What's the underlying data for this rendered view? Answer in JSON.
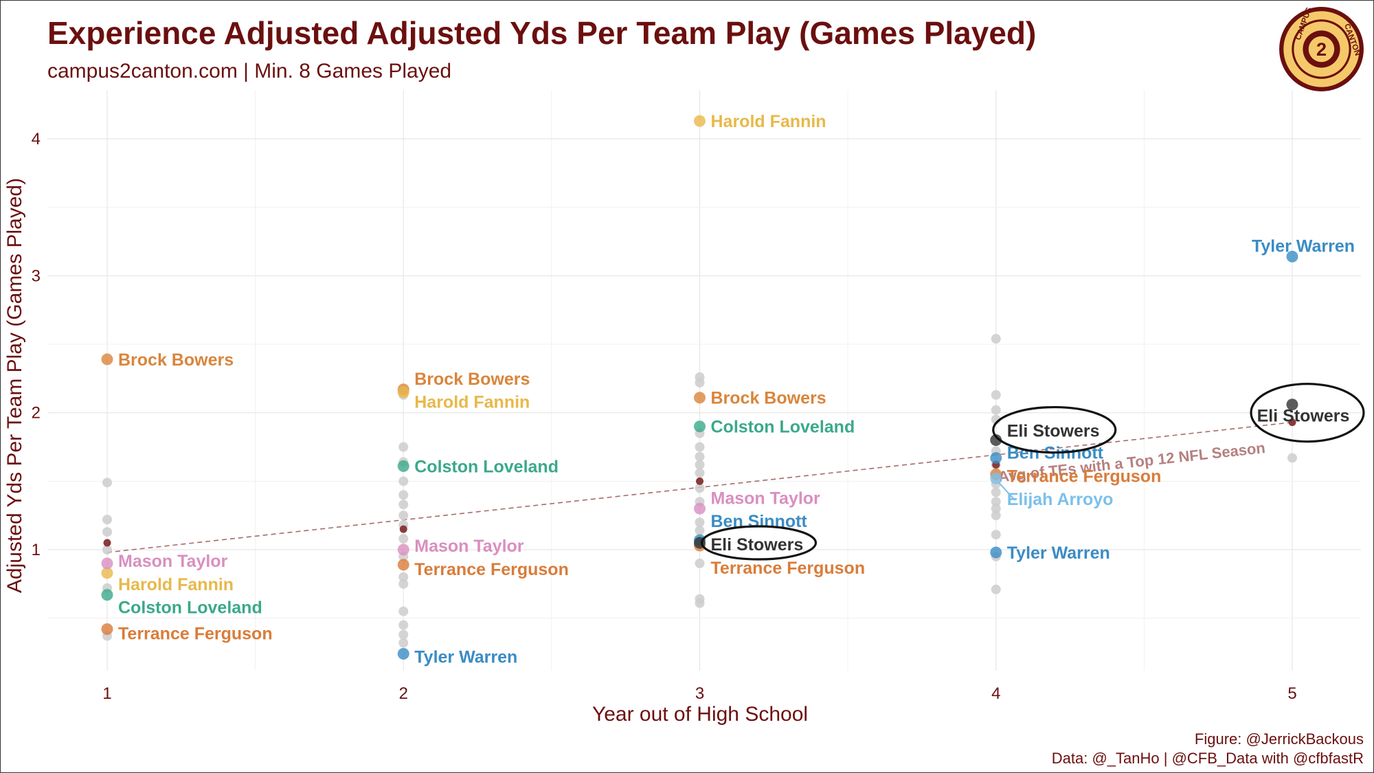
{
  "header": {
    "title": "Experience Adjusted Adjusted Yds Per Team Play (Games Played)",
    "subtitle": "campus2canton.com | Min. 8 Games Played"
  },
  "caption": {
    "figure": "Figure: @JerrickBackous",
    "data": "Data: @_TanHo | @CFB_Data with @cfbfastR"
  },
  "logo": {
    "name": "campus2canton-logo",
    "text_top": "CAMPUS",
    "text_right": "CANTON",
    "center": "2"
  },
  "chart_data": {
    "type": "scatter",
    "xlabel": "Year out of High School",
    "ylabel": "Adjusted Yds Per Team Play (Games Played)",
    "xlim": [
      0.8,
      5.25
    ],
    "ylim": [
      0.0,
      4.3
    ],
    "x_ticks": [
      1,
      2,
      3,
      4,
      5
    ],
    "y_ticks": [
      1,
      2,
      3,
      4
    ],
    "grid": true,
    "trend_line": {
      "label": "Avg of TEs with a Top 12 NFL Season",
      "points": [
        [
          1,
          0.98
        ],
        [
          5,
          1.93
        ]
      ],
      "color": "#a86a6a"
    },
    "colors": {
      "Brock Bowers": "#d9853b",
      "Harold Fannin": "#e8b84a",
      "Colston Loveland": "#3aa98a",
      "Mason Taylor": "#d98fc0",
      "Terrance Ferguson": "#d97c3a",
      "Tyler Warren": "#3a8cc4",
      "Eli Stowers": "#333333",
      "Ben Sinnott": "#3a8cc4",
      "Elijah Arroyo": "#7cc0ea",
      "avg": "#8b3a3a",
      "background_points": "#cccccc"
    },
    "background_points": [
      [
        1,
        1.49
      ],
      [
        1,
        1.22
      ],
      [
        1,
        1.13
      ],
      [
        1,
        1.0
      ],
      [
        1,
        0.72
      ],
      [
        1,
        0.37
      ],
      [
        2,
        1.75
      ],
      [
        2,
        1.64
      ],
      [
        2,
        1.5
      ],
      [
        2,
        1.4
      ],
      [
        2,
        1.33
      ],
      [
        2,
        1.25
      ],
      [
        2,
        1.18
      ],
      [
        2,
        1.08
      ],
      [
        2,
        0.95
      ],
      [
        2,
        0.8
      ],
      [
        2,
        0.75
      ],
      [
        2,
        0.55
      ],
      [
        2,
        0.45
      ],
      [
        2,
        0.38
      ],
      [
        2,
        0.32
      ],
      [
        2,
        2.13
      ],
      [
        3,
        2.26
      ],
      [
        3,
        2.22
      ],
      [
        3,
        1.85
      ],
      [
        3,
        1.75
      ],
      [
        3,
        1.68
      ],
      [
        3,
        1.62
      ],
      [
        3,
        1.56
      ],
      [
        3,
        1.45
      ],
      [
        3,
        1.35
      ],
      [
        3,
        1.2
      ],
      [
        3,
        1.14
      ],
      [
        3,
        0.9
      ],
      [
        3,
        0.64
      ],
      [
        3,
        0.61
      ],
      [
        4,
        2.54
      ],
      [
        4,
        2.13
      ],
      [
        4,
        2.02
      ],
      [
        4,
        1.95
      ],
      [
        4,
        1.72
      ],
      [
        4,
        1.62
      ],
      [
        4,
        1.48
      ],
      [
        4,
        1.42
      ],
      [
        4,
        1.35
      ],
      [
        4,
        1.3
      ],
      [
        4,
        1.25
      ],
      [
        4,
        1.11
      ],
      [
        4,
        0.95
      ],
      [
        4,
        0.71
      ],
      [
        5,
        1.67
      ]
    ],
    "avg_points": [
      [
        1,
        1.05
      ],
      [
        2,
        1.15
      ],
      [
        3,
        1.5
      ],
      [
        4,
        1.62
      ],
      [
        5,
        1.93
      ]
    ],
    "series": [
      {
        "name": "Brock Bowers",
        "points": [
          [
            1,
            2.39
          ],
          [
            2,
            2.17
          ],
          [
            3,
            2.11
          ]
        ]
      },
      {
        "name": "Harold Fannin",
        "points": [
          [
            1,
            0.83
          ],
          [
            2,
            2.15
          ],
          [
            3,
            4.13
          ]
        ]
      },
      {
        "name": "Colston Loveland",
        "points": [
          [
            1,
            0.67
          ],
          [
            2,
            1.61
          ],
          [
            3,
            1.9
          ]
        ]
      },
      {
        "name": "Mason Taylor",
        "points": [
          [
            1,
            0.9
          ],
          [
            2,
            1.0
          ],
          [
            3,
            1.3
          ]
        ]
      },
      {
        "name": "Terrance Ferguson",
        "points": [
          [
            1,
            0.42
          ],
          [
            2,
            0.89
          ],
          [
            3,
            1.03
          ],
          [
            4,
            1.55
          ]
        ]
      },
      {
        "name": "Tyler Warren",
        "points": [
          [
            2,
            0.24
          ],
          [
            4,
            0.98
          ],
          [
            5,
            3.14
          ]
        ]
      },
      {
        "name": "Ben Sinnott",
        "points": [
          [
            3,
            1.07
          ],
          [
            4,
            1.67
          ]
        ]
      },
      {
        "name": "Eli Stowers",
        "points": [
          [
            3,
            1.05
          ],
          [
            4,
            1.8
          ],
          [
            5,
            2.06
          ]
        ]
      },
      {
        "name": "Elijah Arroyo",
        "points": [
          [
            4,
            1.52
          ]
        ]
      }
    ],
    "labels": [
      {
        "text": "Brock Bowers",
        "x": 1,
        "y": 2.39,
        "series": "Brock Bowers"
      },
      {
        "text": "Mason Taylor",
        "x": 1,
        "y": 0.92,
        "series": "Mason Taylor"
      },
      {
        "text": "Harold Fannin",
        "x": 1,
        "y": 0.75,
        "series": "Harold Fannin"
      },
      {
        "text": "Colston Loveland",
        "x": 1,
        "y": 0.58,
        "series": "Colston Loveland"
      },
      {
        "text": "Terrance Ferguson",
        "x": 1,
        "y": 0.39,
        "series": "Terrance Ferguson"
      },
      {
        "text": "Brock Bowers",
        "x": 2,
        "y": 2.25,
        "series": "Brock Bowers"
      },
      {
        "text": "Harold Fannin",
        "x": 2,
        "y": 2.08,
        "series": "Harold Fannin"
      },
      {
        "text": "Colston Loveland",
        "x": 2,
        "y": 1.61,
        "series": "Colston Loveland"
      },
      {
        "text": "Mason Taylor",
        "x": 2,
        "y": 1.03,
        "series": "Mason Taylor"
      },
      {
        "text": "Terrance Ferguson",
        "x": 2,
        "y": 0.86,
        "series": "Terrance Ferguson"
      },
      {
        "text": "Tyler Warren",
        "x": 2,
        "y": 0.22,
        "series": "Tyler Warren"
      },
      {
        "text": "Harold Fannin",
        "x": 3,
        "y": 4.13,
        "series": "Harold Fannin"
      },
      {
        "text": "Brock Bowers",
        "x": 3,
        "y": 2.11,
        "series": "Brock Bowers"
      },
      {
        "text": "Colston Loveland",
        "x": 3,
        "y": 1.9,
        "series": "Colston Loveland"
      },
      {
        "text": "Mason Taylor",
        "x": 3,
        "y": 1.38,
        "series": "Mason Taylor"
      },
      {
        "text": "Ben Sinnott",
        "x": 3,
        "y": 1.21,
        "series": "Ben Sinnott"
      },
      {
        "text": "Eli Stowers",
        "x": 3,
        "y": 1.04,
        "series": "Eli Stowers"
      },
      {
        "text": "Terrance Ferguson",
        "x": 3,
        "y": 0.87,
        "series": "Terrance Ferguson"
      },
      {
        "text": "Eli Stowers",
        "x": 4,
        "y": 1.87,
        "series": "Eli Stowers"
      },
      {
        "text": "Ben Sinnott",
        "x": 4,
        "y": 1.71,
        "series": "Ben Sinnott"
      },
      {
        "text": "Terrance Ferguson",
        "x": 4,
        "y": 1.54,
        "series": "Terrance Ferguson"
      },
      {
        "text": "Elijah Arroyo",
        "x": 4,
        "y": 1.37,
        "series": "Elijah Arroyo"
      },
      {
        "text": "Tyler Warren",
        "x": 4,
        "y": 0.98,
        "series": "Tyler Warren"
      },
      {
        "text": "Tyler Warren",
        "x": 5,
        "y": 3.22,
        "series": "Tyler Warren"
      },
      {
        "text": "Eli Stowers",
        "x": 5,
        "y": 1.98,
        "series": "Eli Stowers"
      }
    ],
    "highlights": [
      {
        "name": "Eli Stowers",
        "x": 3,
        "y": 1.05
      },
      {
        "name": "Eli Stowers",
        "x": 4,
        "y": 1.87
      },
      {
        "name": "Eli Stowers",
        "x": 5,
        "y": 2.0
      }
    ]
  }
}
